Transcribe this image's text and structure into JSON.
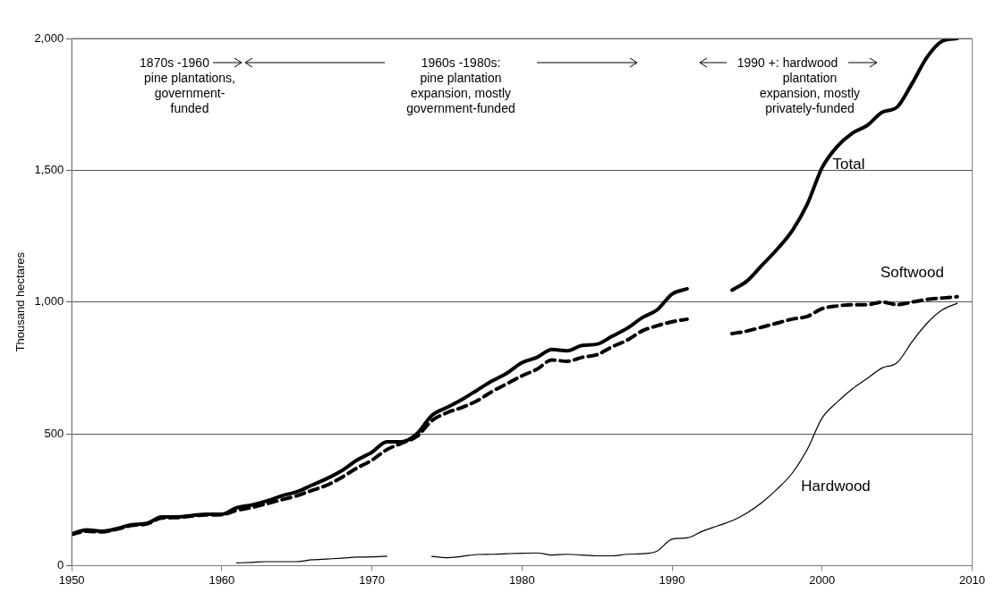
{
  "chart_data": {
    "type": "line",
    "ylabel": "Thousand hectares",
    "x": [
      1950,
      1951,
      1952,
      1953,
      1954,
      1955,
      1956,
      1957,
      1958,
      1959,
      1960,
      1961,
      1962,
      1963,
      1964,
      1965,
      1966,
      1967,
      1968,
      1969,
      1970,
      1971,
      1972,
      1973,
      1974,
      1975,
      1976,
      1977,
      1978,
      1979,
      1980,
      1981,
      1982,
      1983,
      1984,
      1985,
      1986,
      1987,
      1988,
      1989,
      1990,
      1991,
      1992,
      1993,
      1994,
      1995,
      1996,
      1997,
      1998,
      1999,
      2000,
      2001,
      2002,
      2003,
      2004,
      2005,
      2006,
      2007,
      2008,
      2009
    ],
    "series": [
      {
        "name": "Total",
        "color": "#000000",
        "line_style": "solid",
        "values": [
          120,
          135,
          130,
          140,
          155,
          160,
          185,
          185,
          190,
          195,
          195,
          220,
          230,
          245,
          265,
          280,
          305,
          330,
          360,
          400,
          430,
          470,
          470,
          500,
          570,
          600,
          630,
          665,
          700,
          730,
          770,
          790,
          820,
          815,
          835,
          840,
          870,
          900,
          940,
          970,
          1030,
          1050,
          null,
          null,
          1045,
          1080,
          1140,
          1200,
          1270,
          1370,
          1510,
          1590,
          1640,
          1670,
          1720,
          1740,
          1830,
          1930,
          1990,
          2000
        ]
      },
      {
        "name": "Softwood",
        "color": "#000000",
        "line_style": "dashed",
        "values": [
          118,
          130,
          128,
          138,
          152,
          158,
          180,
          182,
          188,
          192,
          193,
          210,
          220,
          235,
          250,
          265,
          285,
          305,
          335,
          370,
          400,
          440,
          465,
          490,
          550,
          580,
          600,
          625,
          660,
          690,
          720,
          745,
          780,
          775,
          790,
          800,
          830,
          855,
          890,
          910,
          925,
          935,
          null,
          null,
          880,
          890,
          905,
          920,
          935,
          945,
          975,
          985,
          990,
          990,
          1000,
          990,
          1000,
          1010,
          1015,
          1020
        ]
      },
      {
        "name": "Hardwood",
        "color": "#000000",
        "line_style": "solid",
        "values": [
          null,
          null,
          null,
          null,
          null,
          null,
          null,
          null,
          null,
          null,
          null,
          10,
          12,
          15,
          15,
          15,
          22,
          25,
          28,
          32,
          33,
          36,
          null,
          null,
          35,
          30,
          35,
          42,
          43,
          45,
          47,
          48,
          40,
          43,
          40,
          37,
          37,
          43,
          45,
          55,
          100,
          105,
          130,
          150,
          170,
          200,
          240,
          290,
          350,
          440,
          560,
          620,
          670,
          710,
          750,
          770,
          850,
          920,
          970,
          995
        ]
      }
    ],
    "xlim": [
      1950,
      2010
    ],
    "xticks": [
      1950,
      1960,
      1970,
      1980,
      1990,
      2000,
      2010
    ],
    "ylim": [
      0,
      2000
    ],
    "yticks": [
      0,
      500,
      {
        "value": 1000,
        "label": "1,000"
      },
      {
        "value": 1500,
        "label": "1,500"
      },
      {
        "value": 2000,
        "label": "2,000"
      }
    ],
    "grid": "y",
    "legend": false,
    "marker": "none",
    "annotations": [
      "1870s -1960\npine plantations,\ngovernment-\nfunded",
      "1960s -1980s:\npine plantation\nexpansion, mostly\ngovernment-funded",
      "1990 +: hardwood\nplantation\nexpansion, mostly\nprivately-funded"
    ]
  }
}
